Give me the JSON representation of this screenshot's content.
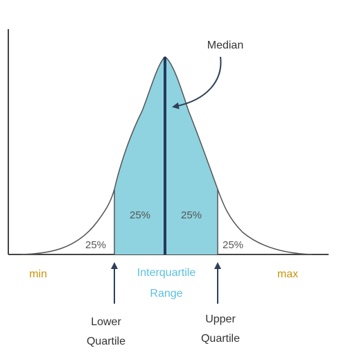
{
  "labels": {
    "median": "Median",
    "min": "min",
    "max": "max",
    "interquartile_line1": "Interquartile",
    "interquartile_line2": "Range",
    "lower_line1": "Lower",
    "lower_line2": "Quartile",
    "upper_line1": "Upper",
    "upper_line2": "Quartile"
  },
  "segments": {
    "outer_left": "25%",
    "inner_left": "25%",
    "inner_right": "25%",
    "outer_right": "25%"
  },
  "colors": {
    "iqr_fill": "#8ed3df",
    "median_line": "#233a5e",
    "curve": "#555555",
    "axis": "#444444",
    "range_text": "#5bc0de",
    "minmax_text": "#c9950c",
    "arrow": "#2e4057"
  }
}
